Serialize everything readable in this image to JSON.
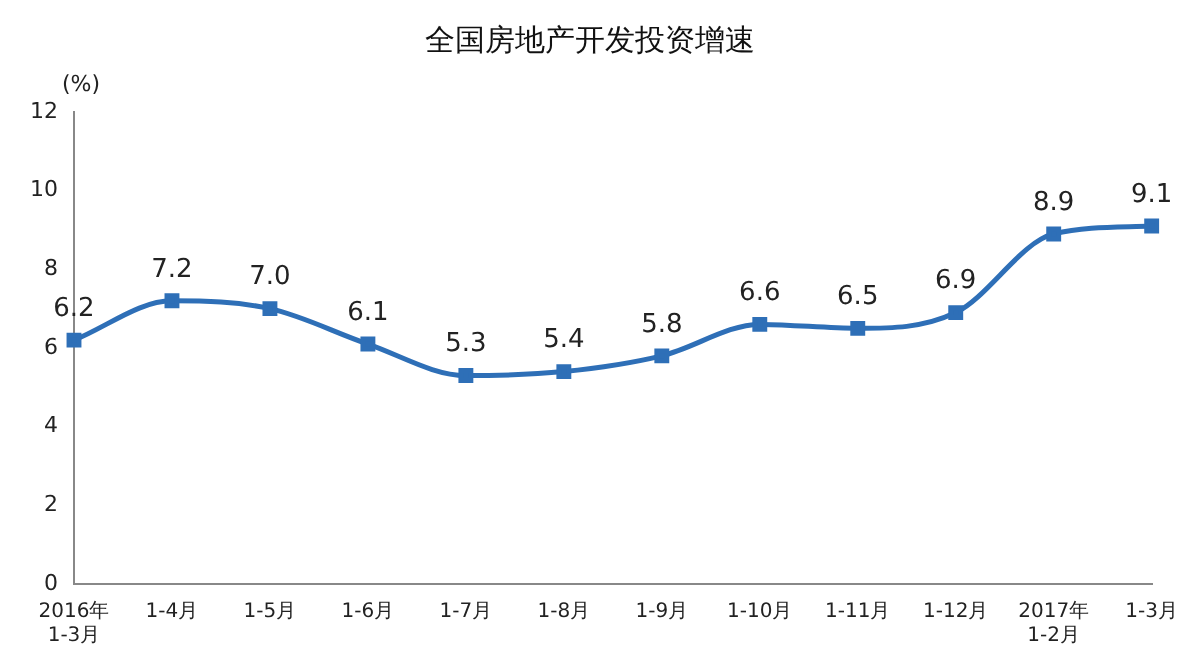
{
  "chart_data": {
    "type": "line",
    "title": "全国房地产开发投资增速",
    "ylabel": "(%)",
    "categories": [
      "2016年\n1-3月",
      "1-4月",
      "1-5月",
      "1-6月",
      "1-7月",
      "1-8月",
      "1-9月",
      "1-10月",
      "1-11月",
      "1-12月",
      "2017年\n1-2月",
      "1-3月"
    ],
    "series": [
      {
        "color": "#2e6fb7",
        "values": [
          6.2,
          7.2,
          7.0,
          6.1,
          5.3,
          5.4,
          5.8,
          6.6,
          6.5,
          6.9,
          8.9,
          9.1
        ],
        "value_labels": [
          "6.2",
          "7.2",
          "7.0",
          "6.1",
          "5.3",
          "5.4",
          "5.8",
          "6.6",
          "6.5",
          "6.9",
          "8.9",
          "9.1"
        ]
      }
    ],
    "ylim": [
      0,
      12
    ],
    "yticks": [
      0,
      2,
      4,
      6,
      8,
      10,
      12
    ],
    "grid": false,
    "legend": false,
    "marker": "square",
    "line_style": "solid"
  }
}
